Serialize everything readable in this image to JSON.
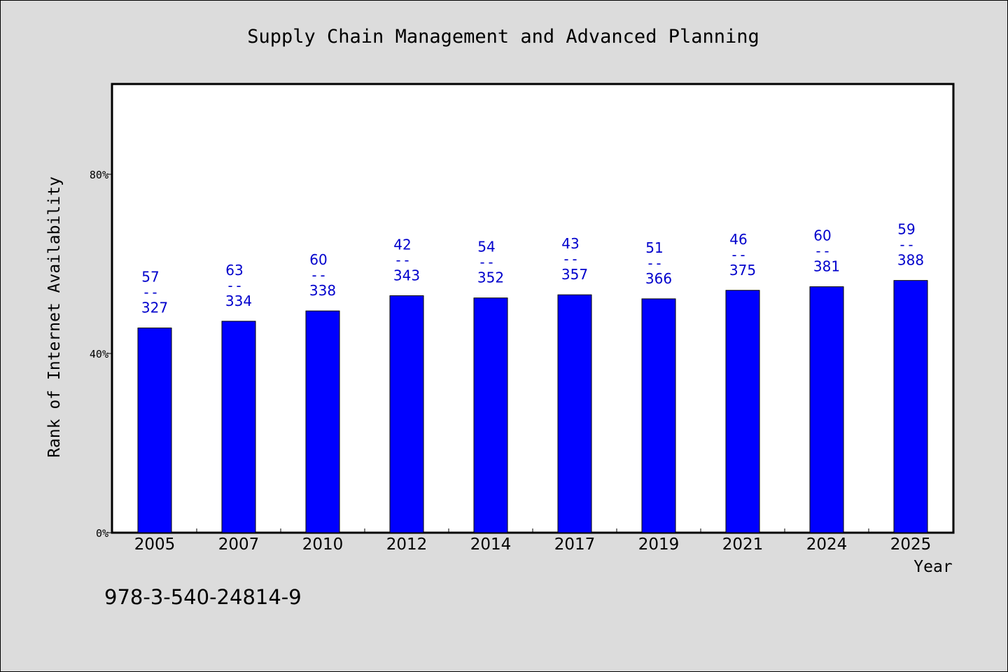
{
  "chart_data": {
    "type": "bar",
    "title": "Supply Chain Management and Advanced Planning",
    "xlabel": "Year",
    "ylabel": "Rank of Internet Availability",
    "categories": [
      "2005",
      "2007",
      "2010",
      "2012",
      "2014",
      "2017",
      "2019",
      "2021",
      "2024",
      "2025"
    ],
    "values": [
      45.7,
      47.2,
      49.5,
      52.9,
      52.4,
      53.1,
      52.2,
      54.1,
      54.9,
      56.3
    ],
    "labels_top": [
      "57",
      "63",
      "60",
      "42",
      "54",
      "43",
      "51",
      "46",
      "60",
      "59"
    ],
    "labels_bottom": [
      "327",
      "334",
      "338",
      "343",
      "352",
      "357",
      "366",
      "375",
      "381",
      "388"
    ],
    "label_separator": "--",
    "ylim": [
      0,
      100
    ],
    "yticks": [
      0,
      40,
      80
    ],
    "ytick_labels": [
      "0%",
      "40%",
      "80%"
    ],
    "bar_color": "#0000ff",
    "label_color": "#0000cc",
    "grid": false
  },
  "footer": {
    "isbn": "978-3-540-24814-9"
  }
}
